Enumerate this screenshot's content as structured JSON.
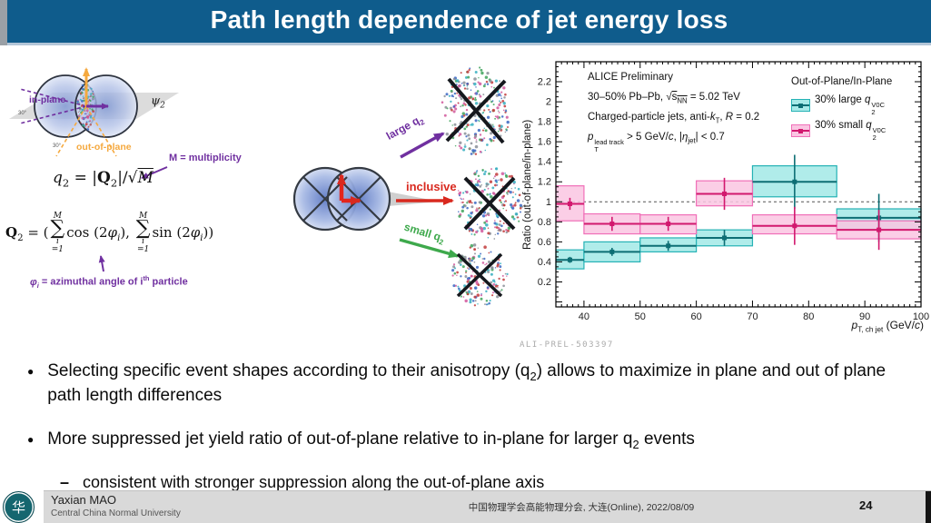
{
  "slide": {
    "title": "Path length dependence of jet energy loss"
  },
  "left_diagram": {
    "psi2_html": "ψ<sub>2</sub>",
    "in_plane": "in-plane",
    "out_of_plane": "out-of-plane",
    "angle_in": "30°",
    "angle_out": "30°"
  },
  "formulas": {
    "q2_html": "<i>q</i><sub>2</sub> = |<b>Q</b><sub>2</sub>|/√<u><i>M</i></u>",
    "m_note": "M = multiplicity",
    "Q2_html": "<b>Q</b><sub>2</sub> = (<st><i>M</i><big>∑</big><i>i</i>=1</st>cos (2<i>φ<sub>i</sub></i>), <st><i>M</i><big>∑</big><i>i</i>=1</st>sin (2<i>φ<sub>i</sub></i>))",
    "phi_note_html": "<i>φ<sub>i</sub></i> = azimuthal angle of i<sup>th</sup> particle"
  },
  "event_diagram": {
    "large_html": "large q<sub>2</sub>",
    "inclusive": "inclusive",
    "small_html": "small q<sub>2</sub>"
  },
  "chart_data": {
    "type": "errorbar",
    "ylabel": "Ratio (out-of-plane/in-plane)",
    "xlabel_html": "<i>p</i><sub>T, ch jet</sub> (GeV/<i>c</i>)",
    "xlim": [
      35,
      100
    ],
    "ylim": [
      -0.05,
      2.4
    ],
    "x_major_ticks": [
      40,
      50,
      60,
      70,
      80,
      90,
      100
    ],
    "x_minor_step": 1,
    "y_major_ticks": [
      0.2,
      0.4,
      0.6,
      0.8,
      1,
      1.2,
      1.4,
      1.6,
      1.8,
      2,
      2.2
    ],
    "y_minor_step": 0.05,
    "reference_line_y": 1,
    "figure_id": "ALI-PREL-503397",
    "info_lines_html": [
      "ALICE Preliminary",
      "30–50% Pb–Pb, √<u>s<sub>NN</sub></u> = 5.02 TeV",
      "Charged-particle jets, anti-<i>k</i><sub>T</sub>, <i>R</i> = 0.2",
      "<i>p</i><vs><em>lead track</em><em>T</em></vs> &gt; 5 GeV/<i>c</i>, |<i>η</i><sub>jet</sub>| &lt; 0.7"
    ],
    "legend": {
      "title": "Out-of-Plane/In-Plane",
      "entries": [
        {
          "label_html": "30% large <i>q</i><vs><em>V0C</em><em>2</em></vs>",
          "fill": "#a7eae8",
          "stroke": "#25b2b5",
          "marker": "#0d6e74"
        },
        {
          "label_html": "30% small <i>q</i><vs><em>V0C</em><em>2</em></vs>",
          "fill": "#fac5e2",
          "stroke": "#f06fb8",
          "marker": "#d2186e"
        }
      ]
    },
    "series": [
      {
        "name": "30% large q2 V0C",
        "color": "#0d6e74",
        "stroke": "#25b2b5",
        "fill": "#a7eae8",
        "fill_opacity": 0.9,
        "points": [
          {
            "x_low": 35,
            "x_high": 40,
            "y": 0.42,
            "stat": 0.03,
            "syst_low": 0.33,
            "syst_high": 0.52
          },
          {
            "x_low": 40,
            "x_high": 50,
            "y": 0.5,
            "stat": 0.04,
            "syst_low": 0.4,
            "syst_high": 0.6
          },
          {
            "x_low": 50,
            "x_high": 60,
            "y": 0.56,
            "stat": 0.05,
            "syst_low": 0.5,
            "syst_high": 0.64
          },
          {
            "x_low": 60,
            "x_high": 70,
            "y": 0.64,
            "stat": 0.08,
            "syst_low": 0.56,
            "syst_high": 0.72
          },
          {
            "x_low": 70,
            "x_high": 85,
            "y": 1.2,
            "stat": 0.27,
            "syst_low": 1.05,
            "syst_high": 1.36
          },
          {
            "x_low": 85,
            "x_high": 100,
            "y": 0.84,
            "stat": 0.24,
            "syst_low": 0.72,
            "syst_high": 0.93
          }
        ]
      },
      {
        "name": "30% small q2 V0C",
        "color": "#d2186e",
        "stroke": "#f06fb8",
        "fill": "#fac5e2",
        "fill_opacity": 0.85,
        "points": [
          {
            "x_low": 35,
            "x_high": 40,
            "y": 0.98,
            "stat": 0.06,
            "syst_low": 0.81,
            "syst_high": 1.16
          },
          {
            "x_low": 40,
            "x_high": 50,
            "y": 0.78,
            "stat": 0.07,
            "syst_low": 0.68,
            "syst_high": 0.88
          },
          {
            "x_low": 50,
            "x_high": 60,
            "y": 0.78,
            "stat": 0.07,
            "syst_low": 0.68,
            "syst_high": 0.87
          },
          {
            "x_low": 60,
            "x_high": 70,
            "y": 1.08,
            "stat": 0.16,
            "syst_low": 0.96,
            "syst_high": 1.21
          },
          {
            "x_low": 70,
            "x_high": 85,
            "y": 0.76,
            "stat": 0.19,
            "syst_low": 0.68,
            "syst_high": 0.87
          },
          {
            "x_low": 85,
            "x_high": 100,
            "y": 0.72,
            "stat": 0.2,
            "syst_low": 0.63,
            "syst_high": 0.81
          }
        ]
      }
    ]
  },
  "bullets": {
    "b1_html": "Selecting specific event shapes according to their anisotropy (q<sub>2</sub>) allows to maximize in plane and out of plane path length differences",
    "b2_html": "More suppressed jet yield ratio of out-of-plane relative to in-plane for larger q<sub>2</sub> events",
    "b2a_html": "consistent with stronger suppression along the out-of-plane axis"
  },
  "footer": {
    "presenter": "Yaxian MAO",
    "affiliation": "Central China Normal University",
    "conference": "中国物理学会高能物理分会, 大连(Online), 2022/08/09",
    "page": "24",
    "logo_char": "华"
  }
}
